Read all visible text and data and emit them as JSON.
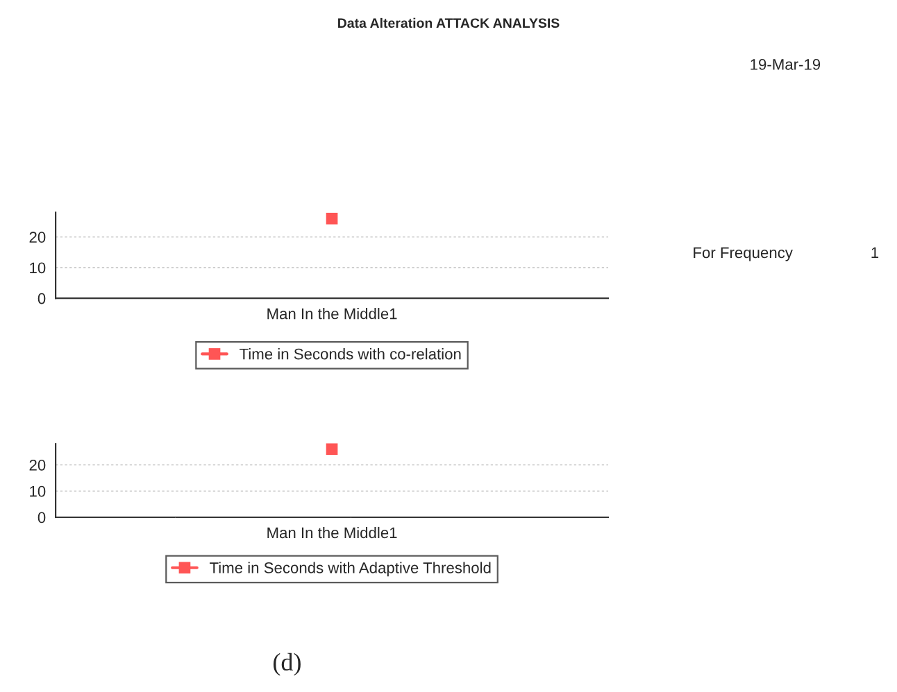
{
  "chart_data": [
    {
      "type": "line",
      "title": "Data Alteration ATTACK ANALYSIS",
      "categories": [
        "Man In the Middle1"
      ],
      "series": [
        {
          "name": "Time in Seconds with co-relation",
          "color": "#ff5555",
          "values": [
            26
          ]
        }
      ],
      "ylim": [
        0,
        28
      ],
      "yticks": [
        0,
        10,
        20
      ],
      "grid": "y",
      "legend": "bottom",
      "marker": "square",
      "annotations": [
        "19-Mar-19",
        "For Frequency",
        "1"
      ]
    },
    {
      "type": "line",
      "categories": [
        "Man In the Middle1"
      ],
      "series": [
        {
          "name": "Time in Seconds with Adaptive Threshold",
          "color": "#ff5555",
          "values": [
            26
          ]
        }
      ],
      "ylim": [
        0,
        28
      ],
      "yticks": [
        0,
        10,
        20
      ],
      "grid": "y",
      "legend": "bottom",
      "marker": "square",
      "annotations": [
        "(d)"
      ]
    }
  ]
}
